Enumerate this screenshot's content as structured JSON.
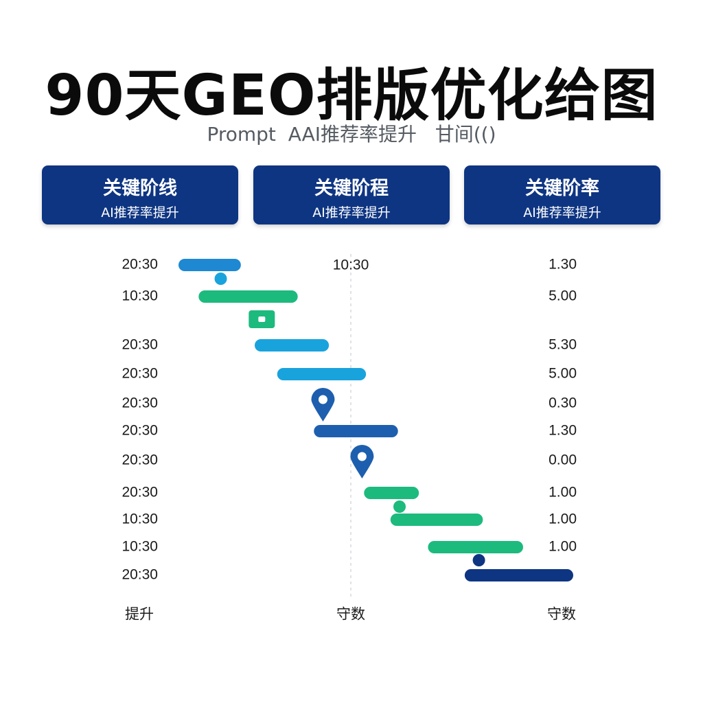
{
  "title": "90天GEO排版优化给图",
  "subtitle": "Prompt  AAI推荐率提升   甘间(()",
  "headers": [
    {
      "title": "关键阶线",
      "subtitle": "AI推荐率提升"
    },
    {
      "title": "关键阶程",
      "subtitle": "AI推荐率提升"
    },
    {
      "title": "关键阶率",
      "subtitle": "AI推荐率提升"
    }
  ],
  "colors": {
    "header_bg": "#0e3582",
    "blue": "#1e88d2",
    "cyan": "#19a3dd",
    "mid_blue": "#1d5fae",
    "green": "#1dba7e",
    "navy": "#0e3582"
  },
  "chart_data": {
    "type": "gantt",
    "middle_label": "10:30",
    "rows": [
      {
        "left": "20:30",
        "right": "1.30",
        "start": 0.0,
        "end": 0.158,
        "color": "blue"
      },
      {
        "left": "10:30",
        "right": "5.00",
        "start": 0.051,
        "end": 0.302,
        "color": "green"
      },
      {
        "left": "20:30",
        "right": "5.30",
        "start": 0.193,
        "end": 0.381,
        "color": "cyan"
      },
      {
        "left": "20:30",
        "right": "5.00",
        "start": 0.25,
        "end": 0.475,
        "color": "cyan"
      },
      {
        "left": "20:30",
        "right": "0.30",
        "milestone": "pin",
        "at": 0.366,
        "color": "mid_blue"
      },
      {
        "left": "20:30",
        "right": "1.30",
        "start": 0.343,
        "end": 0.556,
        "color": "mid_blue"
      },
      {
        "left": "20:30",
        "right": "0.00",
        "milestone": "pin",
        "at": 0.465,
        "color": "mid_blue"
      },
      {
        "left": "20:30",
        "right": "1.00",
        "start": 0.47,
        "end": 0.609,
        "color": "green"
      },
      {
        "left": "10:30",
        "right": "1.00",
        "start": 0.537,
        "end": 0.771,
        "color": "green"
      },
      {
        "left": "10:30",
        "right": "1.00",
        "start": 0.632,
        "end": 0.873,
        "color": "green"
      },
      {
        "left": "20:30",
        "right": "",
        "start": 0.725,
        "end": 1.0,
        "color": "navy"
      }
    ],
    "small_markers": [
      {
        "at": 0.107,
        "after_row": 0,
        "shape": "dot",
        "color": "cyan"
      },
      {
        "at": 0.211,
        "after_row": 1,
        "shape": "square",
        "color": "green"
      },
      {
        "at": 0.56,
        "after_row": 7,
        "shape": "dot",
        "color": "green"
      },
      {
        "at": 0.761,
        "after_row": 9,
        "shape": "dot",
        "color": "navy"
      }
    ],
    "footer_labels": [
      "提升",
      "守数",
      "守数"
    ]
  }
}
